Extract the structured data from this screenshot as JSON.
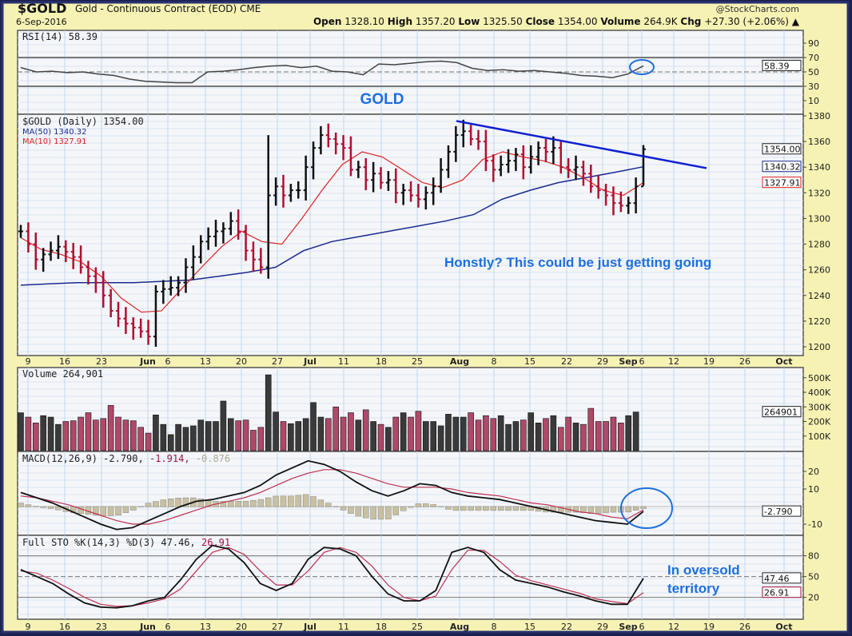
{
  "header": {
    "symbol": "$GOLD",
    "name": "Gold - Continuous Contract (EOD) CME",
    "date": "6-Sep-2016",
    "copyright": "@StockCharts.com",
    "open_label": "Open",
    "open": "1328.10",
    "high_label": "High",
    "high": "1357.20",
    "low_label": "Low",
    "low": "1325.50",
    "close_label": "Close",
    "close": "1354.00",
    "volume_label": "Volume",
    "volume": "264.9K",
    "chg_label": "Chg",
    "chg": "+27.30 (+2.06%)"
  },
  "colors": {
    "up": "#111111",
    "down": "#b01030",
    "vol_up": "#3a3a3a",
    "vol_down": "#b04868",
    "ma50": "#1a2a90",
    "ma10": "#e02020",
    "annotation": "#1e6fe0",
    "trendline": "#1020d0"
  },
  "annotations": {
    "gold_label": "GOLD",
    "comment": "Honstly?  This could be just getting going",
    "oversold_1": "In oversold",
    "oversold_2": "territory"
  },
  "chart_data": [
    {
      "type": "line",
      "panel": "rsi",
      "legend": "RSI(14) 58.39",
      "last_badge": "58.39",
      "ticks": [
        "90",
        "70",
        "50",
        "30",
        "10"
      ],
      "levels": [
        70,
        30
      ],
      "ylim": [
        0,
        100
      ],
      "values": [
        56,
        50,
        51,
        49,
        50,
        47,
        45,
        40,
        37,
        36,
        35,
        35,
        50,
        51,
        53,
        56,
        58,
        59,
        56,
        58,
        51,
        50,
        46,
        61,
        60,
        62,
        64,
        65,
        63,
        55,
        52,
        53,
        51,
        52,
        50,
        48,
        45,
        44,
        42,
        47,
        58.39
      ]
    },
    {
      "type": "ohlc",
      "panel": "price",
      "legend": "$GOLD (Daily) 1354.00",
      "ma50_legend": "MA(50) 1340.32",
      "ma10_legend": "MA(10) 1327.91",
      "badges": [
        "1354.00",
        "1340.32",
        "1327.91"
      ],
      "ticks": [
        "1380",
        "1360",
        "1340",
        "1320",
        "1300",
        "1280",
        "1260",
        "1240",
        "1220",
        "1200"
      ],
      "ylim": [
        1195,
        1381
      ],
      "closes": [
        1290,
        1280,
        1268,
        1272,
        1275,
        1278,
        1274,
        1270,
        1262,
        1255,
        1250,
        1240,
        1228,
        1222,
        1218,
        1215,
        1212,
        1208,
        1243,
        1245,
        1246,
        1250,
        1262,
        1270,
        1282,
        1286,
        1290,
        1292,
        1298,
        1290,
        1275,
        1268,
        1262,
        1318,
        1325,
        1318,
        1322,
        1322,
        1340,
        1355,
        1365,
        1362,
        1358,
        1355,
        1338,
        1340,
        1330,
        1335,
        1328,
        1330,
        1320,
        1322,
        1318,
        1315,
        1320,
        1325,
        1338,
        1352,
        1365,
        1368,
        1362,
        1360,
        1345,
        1338,
        1342,
        1345,
        1350,
        1340,
        1348,
        1355,
        1352,
        1355,
        1340,
        1338,
        1340,
        1335,
        1325,
        1322,
        1318,
        1312,
        1310,
        1312,
        1325,
        1354
      ],
      "ma50": [
        1248,
        1249,
        1250,
        1250,
        1250,
        1251,
        1252,
        1255,
        1258,
        1262,
        1275,
        1282,
        1286,
        1290,
        1294,
        1298,
        1303,
        1315,
        1322,
        1328,
        1332,
        1336,
        1340.32
      ],
      "ma10": [
        1285,
        1276,
        1272,
        1266,
        1255,
        1238,
        1227,
        1228,
        1245,
        1262,
        1278,
        1290,
        1282,
        1280,
        1300,
        1322,
        1342,
        1352,
        1348,
        1338,
        1328,
        1324,
        1330,
        1346,
        1352,
        1348,
        1345,
        1340,
        1332,
        1322,
        1318,
        1327.91
      ],
      "trendline": [
        1376,
        1340
      ]
    },
    {
      "type": "bar",
      "panel": "volume",
      "legend": "Volume 264,901",
      "last_badge": "264901",
      "ticks": [
        "500K",
        "400K",
        "300K",
        "200K",
        "100K"
      ],
      "ylim": [
        0,
        550
      ],
      "values_k": [
        260,
        230,
        190,
        240,
        230,
        180,
        200,
        205,
        230,
        260,
        210,
        220,
        310,
        230,
        210,
        205,
        160,
        120,
        245,
        180,
        110,
        180,
        160,
        170,
        210,
        200,
        200,
        340,
        220,
        205,
        210,
        140,
        160,
        520,
        265,
        200,
        185,
        200,
        220,
        330,
        230,
        220,
        300,
        230,
        260,
        210,
        280,
        200,
        180,
        160,
        230,
        260,
        230,
        270,
        200,
        200,
        170,
        250,
        230,
        230,
        260,
        210,
        240,
        220,
        240,
        180,
        200,
        210,
        260,
        190,
        220,
        240,
        160,
        230,
        190,
        180,
        290,
        200,
        200,
        230,
        190,
        240,
        264.9
      ]
    },
    {
      "type": "line",
      "panel": "macd",
      "legend_prefix": "MACD(12,26,9)",
      "macd_value": "-2.790,",
      "signal_value": "-1.914,",
      "hist_value": "-0.876",
      "last_badge": "-2.790",
      "ticks": [
        "20",
        "10",
        "-10"
      ],
      "ylim": [
        -15,
        30
      ],
      "macd": [
        8,
        5,
        2,
        -2,
        -6,
        -10,
        -13,
        -12,
        -8,
        -4,
        0,
        3,
        4,
        6,
        8,
        12,
        18,
        22,
        26,
        24,
        20,
        14,
        9,
        6,
        9,
        13,
        12,
        8,
        6,
        5,
        4,
        2,
        0,
        -2,
        -4,
        -6,
        -8,
        -9,
        -10,
        -2.79
      ],
      "signal": [
        6,
        5,
        3,
        1,
        -2,
        -5,
        -8,
        -10,
        -10,
        -8,
        -5,
        -2,
        1,
        3,
        5,
        8,
        12,
        16,
        19,
        21,
        21,
        19,
        16,
        13,
        11,
        11,
        11,
        10,
        8,
        7,
        6,
        4,
        2,
        1,
        -1,
        -3,
        -4,
        -6,
        -7,
        -1.914
      ]
    },
    {
      "type": "line",
      "panel": "stochastic",
      "legend_prefix": "Full STO %K(14,3) %D(3)",
      "k_value": "47.46,",
      "d_value": "26.91",
      "badges": [
        "47.46",
        "26.91"
      ],
      "ticks": [
        "80",
        "50",
        "20"
      ],
      "ylim": [
        0,
        100
      ],
      "k": [
        60,
        50,
        40,
        25,
        12,
        6,
        5,
        8,
        15,
        20,
        45,
        75,
        95,
        90,
        70,
        40,
        30,
        40,
        75,
        92,
        90,
        80,
        50,
        25,
        15,
        15,
        30,
        85,
        92,
        85,
        60,
        45,
        40,
        35,
        28,
        22,
        15,
        10,
        10,
        47.46
      ],
      "d": [
        58,
        55,
        45,
        33,
        20,
        10,
        7,
        8,
        12,
        18,
        32,
        58,
        85,
        92,
        82,
        58,
        38,
        38,
        58,
        85,
        92,
        85,
        65,
        38,
        20,
        15,
        22,
        60,
        88,
        88,
        72,
        52,
        44,
        38,
        32,
        26,
        18,
        14,
        11,
        26.91
      ]
    }
  ],
  "x_axis": {
    "labels": [
      "9",
      "16",
      "23",
      "Jun",
      "6",
      "13",
      "20",
      "27",
      "Jul",
      "11",
      "18",
      "25",
      "Aug",
      "8",
      "15",
      "22",
      "29",
      "Sep",
      "6",
      "12",
      "19",
      "26",
      "Oct"
    ],
    "bold": [
      "Jun",
      "Jul",
      "Aug",
      "Sep",
      "Oct"
    ]
  }
}
